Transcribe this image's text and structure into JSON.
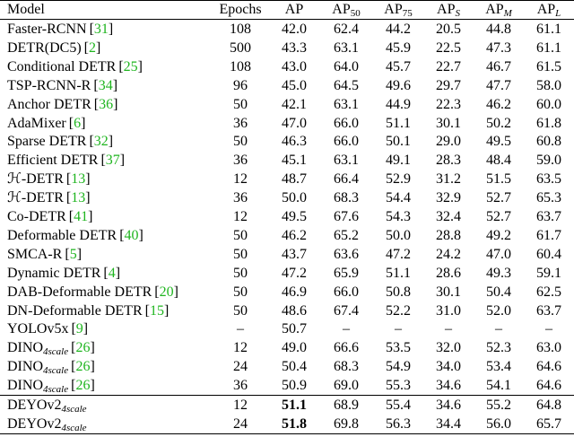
{
  "table": {
    "header": [
      {
        "text": "Model"
      },
      {
        "text": "Epochs"
      },
      {
        "text": "AP"
      },
      {
        "text": "AP",
        "sub": "50"
      },
      {
        "text": "AP",
        "sub": "75"
      },
      {
        "text": "AP",
        "sub": "S"
      },
      {
        "text": "AP",
        "sub": "M"
      },
      {
        "text": "AP",
        "sub": "L"
      }
    ],
    "groups": [
      {
        "rows": [
          {
            "model": {
              "name": "Faster-RCNN",
              "cite": "[31]"
            },
            "cells": [
              "108",
              "42.0",
              "62.4",
              "44.2",
              "20.5",
              "44.8",
              "61.1"
            ]
          },
          {
            "model": {
              "name": "DETR(DC5)",
              "cite": "[2]"
            },
            "cells": [
              "500",
              "43.3",
              "63.1",
              "45.9",
              "22.5",
              "47.3",
              "61.1"
            ]
          },
          {
            "model": {
              "name": "Conditional DETR",
              "cite": "[25]"
            },
            "cells": [
              "108",
              "43.0",
              "64.0",
              "45.7",
              "22.7",
              "46.7",
              "61.5"
            ]
          },
          {
            "model": {
              "name": "TSP-RCNN-R",
              "cite": "[34]"
            },
            "cells": [
              "96",
              "45.0",
              "64.5",
              "49.6",
              "29.7",
              "47.7",
              "58.0"
            ]
          },
          {
            "model": {
              "name": "Anchor DETR",
              "cite": "[36]"
            },
            "cells": [
              "50",
              "42.1",
              "63.1",
              "44.9",
              "22.3",
              "46.2",
              "60.0"
            ]
          },
          {
            "model": {
              "name": "AdaMixer",
              "cite": "[6]"
            },
            "cells": [
              "36",
              "47.0",
              "66.0",
              "51.1",
              "30.1",
              "50.2",
              "61.8"
            ]
          },
          {
            "model": {
              "name": "Sparse DETR",
              "cite": "[32]"
            },
            "cells": [
              "50",
              "46.3",
              "66.0",
              "50.1",
              "29.0",
              "49.5",
              "60.8"
            ]
          },
          {
            "model": {
              "name": "Efficient DETR",
              "cite": "[37]"
            },
            "cells": [
              "36",
              "45.1",
              "63.1",
              "49.1",
              "28.3",
              "48.4",
              "59.0"
            ]
          },
          {
            "model": {
              "name": "ℋ-DETR",
              "cite": "[13]"
            },
            "cells": [
              "12",
              "48.7",
              "66.4",
              "52.9",
              "31.2",
              "51.5",
              "63.5"
            ]
          },
          {
            "model": {
              "name": "ℋ-DETR",
              "cite": "[13]"
            },
            "cells": [
              "36",
              "50.0",
              "68.3",
              "54.4",
              "32.9",
              "52.7",
              "65.3"
            ]
          },
          {
            "model": {
              "name": "Co-DETR",
              "cite": "[41]"
            },
            "cells": [
              "12",
              "49.5",
              "67.6",
              "54.3",
              "32.4",
              "52.7",
              "63.7"
            ]
          },
          {
            "model": {
              "name": "Deformable DETR",
              "cite": "[40]"
            },
            "cells": [
              "50",
              "46.2",
              "65.2",
              "50.0",
              "28.8",
              "49.2",
              "61.7"
            ]
          },
          {
            "model": {
              "name": "SMCA-R",
              "cite": "[5]"
            },
            "cells": [
              "50",
              "43.7",
              "63.6",
              "47.2",
              "24.2",
              "47.0",
              "60.4"
            ]
          },
          {
            "model": {
              "name": "Dynamic DETR",
              "cite": "[4]"
            },
            "cells": [
              "50",
              "47.2",
              "65.9",
              "51.1",
              "28.6",
              "49.3",
              "59.1"
            ]
          },
          {
            "model": {
              "name": "DAB-Deformable DETR",
              "cite": "[20]"
            },
            "cells": [
              "50",
              "46.9",
              "66.0",
              "50.8",
              "30.1",
              "50.4",
              "62.5"
            ]
          },
          {
            "model": {
              "name": "DN-Deformable DETR",
              "cite": "[15]"
            },
            "cells": [
              "50",
              "48.6",
              "67.4",
              "52.2",
              "31.0",
              "52.0",
              "63.7"
            ]
          },
          {
            "model": {
              "name": "YOLOv5x",
              "cite": "[9]"
            },
            "cells": [
              "–",
              "50.7",
              "–",
              "–",
              "–",
              "–",
              "–"
            ]
          },
          {
            "model": {
              "name": "DINO",
              "sub": "4scale",
              "cite": "[26]"
            },
            "cells": [
              "12",
              "49.0",
              "66.6",
              "53.5",
              "32.0",
              "52.3",
              "63.0"
            ]
          },
          {
            "model": {
              "name": "DINO",
              "sub": "4scale",
              "cite": "[26]"
            },
            "cells": [
              "24",
              "50.4",
              "68.3",
              "54.9",
              "34.0",
              "53.4",
              "64.6"
            ]
          },
          {
            "model": {
              "name": "DINO",
              "sub": "4scale",
              "cite": "[26]"
            },
            "cells": [
              "36",
              "50.9",
              "69.0",
              "55.3",
              "34.6",
              "54.1",
              "64.6"
            ]
          }
        ]
      },
      {
        "rows": [
          {
            "model": {
              "name": "DEYOv2",
              "sub": "4scale"
            },
            "cells": [
              "12",
              "51.1",
              "68.9",
              "55.4",
              "34.6",
              "55.2",
              "64.8"
            ]
          },
          {
            "model": {
              "name": "DEYOv2",
              "sub": "4scale"
            },
            "cells": [
              "24",
              "51.8",
              "69.8",
              "56.3",
              "34.4",
              "56.0",
              "65.7"
            ]
          }
        ]
      }
    ]
  }
}
